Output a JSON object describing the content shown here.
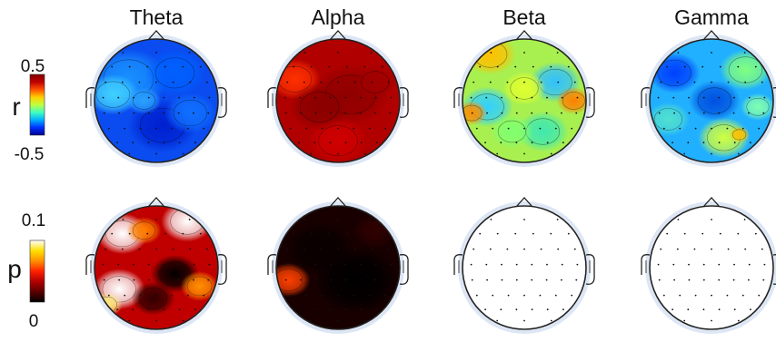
{
  "bands": [
    {
      "id": "theta",
      "title": "Theta",
      "r_map": "cold",
      "p_map": "significant-patchy"
    },
    {
      "id": "alpha",
      "title": "Alpha",
      "r_map": "hot",
      "p_map": "significant-widespread"
    },
    {
      "id": "beta",
      "title": "Beta",
      "r_map": "mixed",
      "p_map": "not-significant"
    },
    {
      "id": "gamma",
      "title": "Gamma",
      "r_map": "mixed-cold",
      "p_map": "not-significant"
    }
  ],
  "rows": [
    {
      "id": "r",
      "label": "r",
      "colorbar": {
        "max_label": "0.5",
        "min_label": "-0.5",
        "max": 0.5,
        "min": -0.5,
        "colormap": "jet"
      }
    },
    {
      "id": "p",
      "label": "p",
      "colorbar": {
        "max_label": "0.1",
        "min_label": "0",
        "max": 0.1,
        "min": 0,
        "colormap": "hot"
      }
    }
  ],
  "colors": {
    "jet": [
      "#00008f",
      "#0030ff",
      "#00b0ff",
      "#40ffc0",
      "#c0ff40",
      "#ffd000",
      "#ff5000",
      "#c00000",
      "#800000"
    ],
    "hot": [
      "#000000",
      "#5a0000",
      "#b00000",
      "#ff2000",
      "#ff9000",
      "#ffe000",
      "#ffffff"
    ],
    "head_outline": "#222222",
    "electrode": "#111111"
  }
}
